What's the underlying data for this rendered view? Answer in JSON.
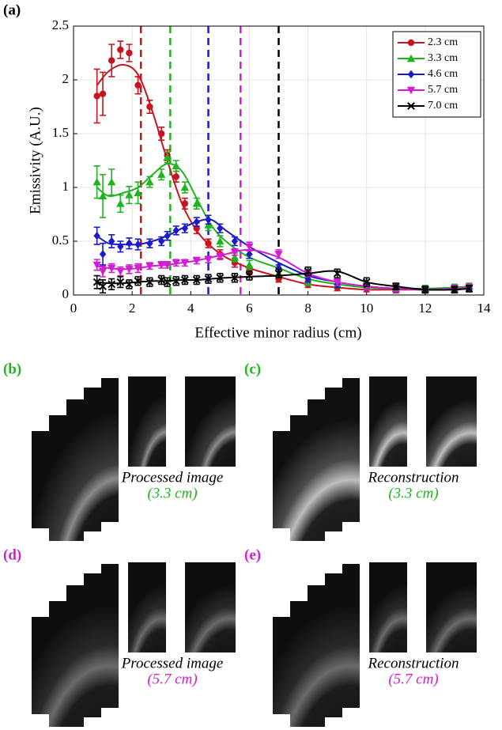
{
  "chart_data": {
    "type": "errorbar-line",
    "panel_label": "(a)",
    "xlabel": "Effective minor radius (cm)",
    "ylabel": "Emissivity (A.U.)",
    "xlim": [
      0,
      14
    ],
    "ylim": [
      0,
      2.5
    ],
    "xticks": [
      0,
      2,
      4,
      6,
      8,
      10,
      12,
      14
    ],
    "yticks": [
      0,
      0.5,
      1,
      1.5,
      2,
      2.5
    ],
    "grid": true,
    "legend": "upper right",
    "x": [
      0.8,
      1.0,
      1.3,
      1.6,
      1.9,
      2.2,
      2.6,
      3.0,
      3.2,
      3.5,
      3.8,
      4.2,
      4.6,
      5.0,
      5.5,
      6.0,
      7.0,
      8.0,
      9.0,
      10.0,
      11.0,
      12.0,
      13.0,
      13.5
    ],
    "fit_x": [
      0.8,
      1.2,
      1.7,
      2.2,
      2.7,
      3.2,
      3.7,
      4.2,
      4.7,
      5.2,
      6,
      7,
      8,
      9,
      10,
      11,
      12,
      13,
      13.5
    ],
    "series": [
      {
        "name": "2.3 cm",
        "color": "#c8141e",
        "marker": "circle",
        "vline": 2.3,
        "values": [
          1.85,
          1.87,
          2.18,
          2.28,
          2.25,
          1.95,
          1.75,
          1.5,
          1.3,
          1.1,
          0.85,
          0.62,
          0.48,
          0.38,
          0.3,
          0.22,
          0.15,
          0.1,
          0.07,
          0.06,
          0.05,
          0.05,
          0.06,
          0.06
        ],
        "errors": [
          0.25,
          0.2,
          0.15,
          0.08,
          0.08,
          0.08,
          0.06,
          0.06,
          0.05,
          0.05,
          0.05,
          0.05,
          0.04,
          0.04,
          0.04,
          0.03,
          0.03,
          0.03,
          0.03,
          0.03,
          0.03,
          0.03,
          0.03,
          0.03
        ],
        "fit": [
          1.95,
          2.08,
          2.14,
          2.05,
          1.7,
          1.25,
          0.85,
          0.6,
          0.45,
          0.35,
          0.25,
          0.17,
          0.1,
          0.07,
          0.05,
          0.05,
          0.05,
          0.06,
          0.07
        ]
      },
      {
        "name": "3.3 cm",
        "color": "#1fb41f",
        "marker": "triangle-up",
        "vline": 3.3,
        "values": [
          1.05,
          0.92,
          1.05,
          0.85,
          0.93,
          0.95,
          1.05,
          1.12,
          1.28,
          1.2,
          1.0,
          0.85,
          0.65,
          0.5,
          0.35,
          0.28,
          0.2,
          0.12,
          0.1,
          0.08,
          0.06,
          0.06,
          0.07,
          0.08
        ],
        "errors": [
          0.15,
          0.2,
          0.12,
          0.08,
          0.08,
          0.1,
          0.05,
          0.05,
          0.05,
          0.05,
          0.05,
          0.05,
          0.05,
          0.05,
          0.04,
          0.04,
          0.04,
          0.03,
          0.03,
          0.03,
          0.03,
          0.03,
          0.03,
          0.03
        ],
        "fit": [
          1.0,
          0.92,
          0.95,
          1.0,
          1.12,
          1.22,
          1.15,
          0.9,
          0.65,
          0.5,
          0.35,
          0.25,
          0.15,
          0.1,
          0.07,
          0.06,
          0.06,
          0.07,
          0.08
        ]
      },
      {
        "name": "4.6 cm",
        "color": "#1a1ac8",
        "marker": "diamond",
        "vline": 4.6,
        "values": [
          0.55,
          0.38,
          0.5,
          0.45,
          0.48,
          0.47,
          0.48,
          0.5,
          0.55,
          0.6,
          0.62,
          0.68,
          0.7,
          0.62,
          0.5,
          0.38,
          0.25,
          0.15,
          0.1,
          0.08,
          0.06,
          0.05,
          0.06,
          0.06
        ],
        "errors": [
          0.08,
          0.1,
          0.06,
          0.05,
          0.05,
          0.05,
          0.04,
          0.04,
          0.04,
          0.04,
          0.04,
          0.04,
          0.04,
          0.04,
          0.04,
          0.04,
          0.03,
          0.03,
          0.03,
          0.03,
          0.03,
          0.03,
          0.03,
          0.03
        ],
        "fit": [
          0.55,
          0.48,
          0.47,
          0.47,
          0.5,
          0.55,
          0.62,
          0.68,
          0.7,
          0.6,
          0.45,
          0.3,
          0.18,
          0.12,
          0.08,
          0.06,
          0.05,
          0.06,
          0.06
        ]
      },
      {
        "name": "5.7 cm",
        "color": "#d21ed2",
        "marker": "triangle-down",
        "vline": 5.7,
        "values": [
          0.28,
          0.22,
          0.25,
          0.22,
          0.24,
          0.25,
          0.27,
          0.28,
          0.28,
          0.3,
          0.3,
          0.32,
          0.33,
          0.36,
          0.4,
          0.45,
          0.38,
          0.2,
          0.12,
          0.08,
          0.06,
          0.05,
          0.06,
          0.07
        ],
        "errors": [
          0.05,
          0.05,
          0.04,
          0.04,
          0.04,
          0.04,
          0.03,
          0.03,
          0.03,
          0.03,
          0.03,
          0.03,
          0.03,
          0.03,
          0.03,
          0.04,
          0.04,
          0.03,
          0.03,
          0.03,
          0.03,
          0.03,
          0.03,
          0.03
        ],
        "fit": [
          0.27,
          0.25,
          0.24,
          0.25,
          0.27,
          0.28,
          0.3,
          0.32,
          0.35,
          0.38,
          0.42,
          0.35,
          0.2,
          0.12,
          0.08,
          0.06,
          0.05,
          0.06,
          0.07
        ]
      },
      {
        "name": "7.0 cm",
        "color": "#000000",
        "marker": "x",
        "vline": 7.0,
        "values": [
          0.12,
          0.08,
          0.1,
          0.12,
          0.1,
          0.13,
          0.12,
          0.14,
          0.12,
          0.13,
          0.14,
          0.14,
          0.15,
          0.16,
          0.16,
          0.18,
          0.2,
          0.22,
          0.2,
          0.12,
          0.08,
          0.05,
          0.05,
          0.06
        ],
        "errors": [
          0.06,
          0.06,
          0.05,
          0.05,
          0.04,
          0.04,
          0.04,
          0.04,
          0.04,
          0.04,
          0.04,
          0.04,
          0.04,
          0.04,
          0.04,
          0.04,
          0.04,
          0.04,
          0.04,
          0.04,
          0.03,
          0.03,
          0.03,
          0.03
        ],
        "fit": [
          0.12,
          0.11,
          0.11,
          0.12,
          0.13,
          0.13,
          0.14,
          0.14,
          0.15,
          0.16,
          0.17,
          0.18,
          0.2,
          0.22,
          0.12,
          0.08,
          0.05,
          0.05,
          0.06
        ]
      }
    ]
  },
  "panels": [
    {
      "label": "(b)",
      "caption": "Processed image",
      "subcaption": "(3.3 cm)",
      "color": "#1fb41f"
    },
    {
      "label": "(c)",
      "caption": "Reconstruction",
      "subcaption": "(3.3 cm)",
      "color": "#1fb41f"
    },
    {
      "label": "(d)",
      "caption": "Processed image",
      "subcaption": "(5.7 cm)",
      "color": "#d21ed2"
    },
    {
      "label": "(e)",
      "caption": "Reconstruction",
      "subcaption": "(5.7 cm)",
      "color": "#d21ed2"
    }
  ]
}
